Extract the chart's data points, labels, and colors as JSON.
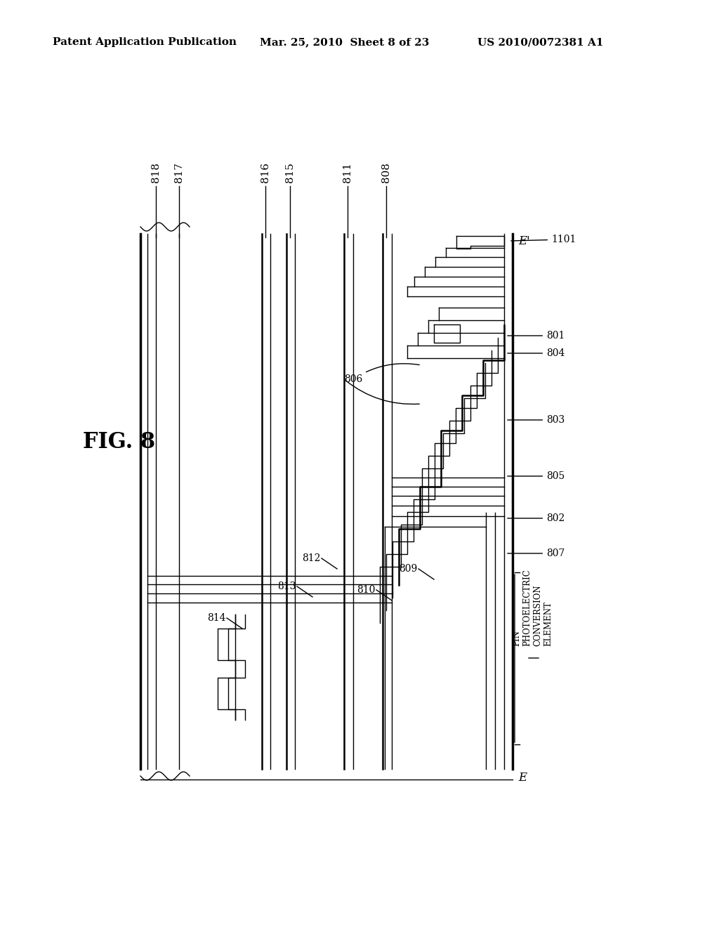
{
  "bg_color": "#ffffff",
  "header_left": "Patent Application Publication",
  "header_mid": "Mar. 25, 2010  Sheet 8 of 23",
  "header_right": "US 2010/0072381 A1",
  "fig_label": "FIG. 8"
}
